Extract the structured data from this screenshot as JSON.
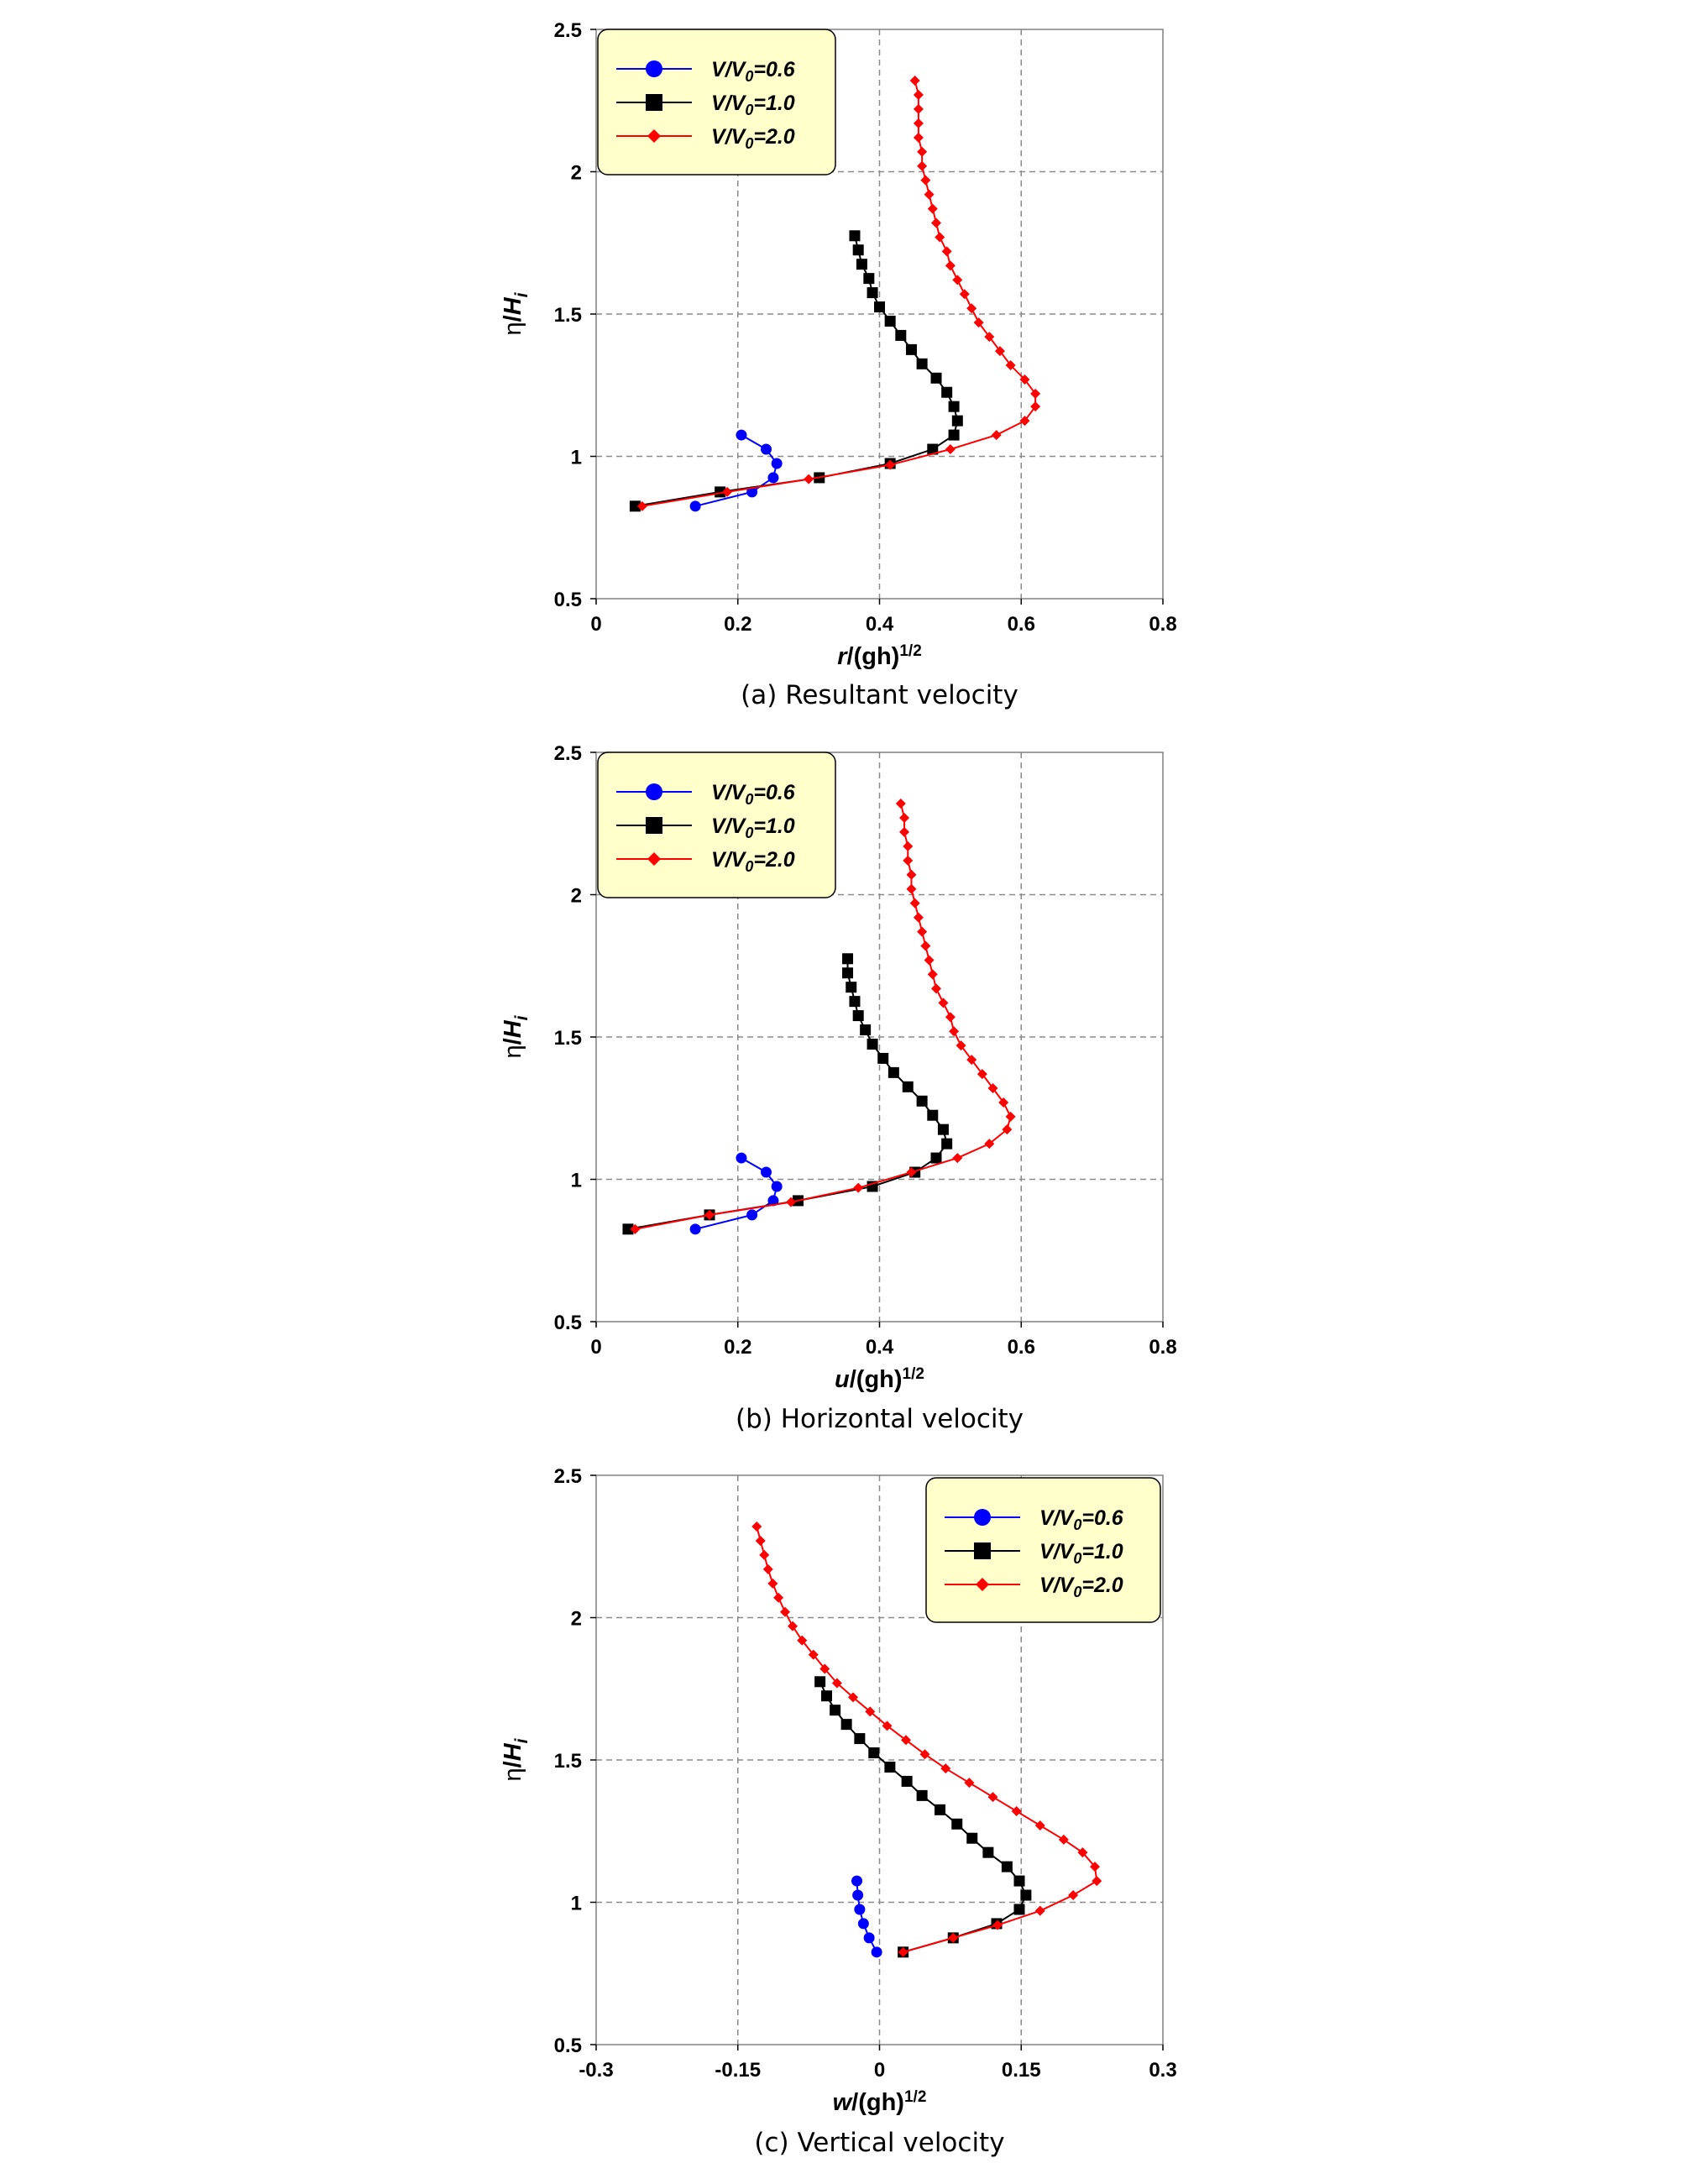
{
  "figure": {
    "captions": [
      "(a) Resultant velocity",
      "(b) Horizontal velocity",
      "(c) Vertical velocity"
    ]
  },
  "chart_data": [
    {
      "type": "line",
      "caption": "(a) Resultant velocity",
      "xlabel": "r/(gh)1/2",
      "xlabel_parts": {
        "var": "r",
        "rest": "/(gh)",
        "sup": "1/2"
      },
      "ylabel": "η/Hi",
      "ylabel_parts": {
        "eta": "η",
        "slash": "/",
        "var": "H",
        "sub": "i"
      },
      "xlim": [
        0,
        0.8
      ],
      "ylim": [
        0.5,
        2.5
      ],
      "xticks": [
        0,
        0.2,
        0.4,
        0.6,
        0.8
      ],
      "xtick_labels": [
        "0",
        "0.2",
        "0.4",
        "0.6",
        "0.8"
      ],
      "yticks": [
        0.5,
        1,
        1.5,
        2,
        2.5
      ],
      "ytick_labels": [
        "0.5",
        "1",
        "1.5",
        "2",
        "2.5"
      ],
      "grid": "dashed",
      "legend_placement": "top-left",
      "series": [
        {
          "name": "V/V0=0.6",
          "label": {
            "a": "V",
            "b": "/",
            "c": "V",
            "sub": "0",
            "d": "=0.6"
          },
          "color": "#0000ff",
          "marker": "circle",
          "points": [
            [
              0.14,
              0.825
            ],
            [
              0.22,
              0.875
            ],
            [
              0.25,
              0.925
            ],
            [
              0.255,
              0.975
            ],
            [
              0.24,
              1.025
            ],
            [
              0.205,
              1.075
            ]
          ]
        },
        {
          "name": "V/V0=1.0",
          "label": {
            "a": "V",
            "b": "/",
            "c": "V",
            "sub": "0",
            "d": "=1.0"
          },
          "color": "#000000",
          "marker": "square",
          "points": [
            [
              0.055,
              0.825
            ],
            [
              0.175,
              0.875
            ],
            [
              0.315,
              0.925
            ],
            [
              0.415,
              0.975
            ],
            [
              0.475,
              1.025
            ],
            [
              0.505,
              1.075
            ],
            [
              0.51,
              1.125
            ],
            [
              0.505,
              1.175
            ],
            [
              0.495,
              1.225
            ],
            [
              0.48,
              1.275
            ],
            [
              0.46,
              1.325
            ],
            [
              0.445,
              1.375
            ],
            [
              0.43,
              1.425
            ],
            [
              0.415,
              1.475
            ],
            [
              0.4,
              1.525
            ],
            [
              0.39,
              1.575
            ],
            [
              0.385,
              1.625
            ],
            [
              0.375,
              1.675
            ],
            [
              0.37,
              1.725
            ],
            [
              0.365,
              1.775
            ]
          ]
        },
        {
          "name": "V/V0=2.0",
          "label": {
            "a": "V",
            "b": "/",
            "c": "V",
            "sub": "0",
            "d": "=2.0"
          },
          "color": "#ff0000",
          "marker": "diamond",
          "points": [
            [
              0.065,
              0.825
            ],
            [
              0.185,
              0.875
            ],
            [
              0.3,
              0.92
            ],
            [
              0.415,
              0.97
            ],
            [
              0.5,
              1.025
            ],
            [
              0.565,
              1.075
            ],
            [
              0.605,
              1.125
            ],
            [
              0.62,
              1.175
            ],
            [
              0.62,
              1.22
            ],
            [
              0.605,
              1.27
            ],
            [
              0.585,
              1.32
            ],
            [
              0.57,
              1.37
            ],
            [
              0.555,
              1.42
            ],
            [
              0.54,
              1.47
            ],
            [
              0.53,
              1.52
            ],
            [
              0.52,
              1.57
            ],
            [
              0.51,
              1.62
            ],
            [
              0.5,
              1.67
            ],
            [
              0.495,
              1.72
            ],
            [
              0.485,
              1.77
            ],
            [
              0.48,
              1.82
            ],
            [
              0.475,
              1.87
            ],
            [
              0.47,
              1.92
            ],
            [
              0.465,
              1.97
            ],
            [
              0.46,
              2.02
            ],
            [
              0.46,
              2.07
            ],
            [
              0.455,
              2.12
            ],
            [
              0.455,
              2.17
            ],
            [
              0.455,
              2.22
            ],
            [
              0.455,
              2.27
            ],
            [
              0.45,
              2.32
            ]
          ]
        }
      ]
    },
    {
      "type": "line",
      "caption": "(b) Horizontal velocity",
      "xlabel": "u/(gh)1/2",
      "xlabel_parts": {
        "var": "u",
        "rest": "/(gh)",
        "sup": "1/2"
      },
      "ylabel": "η/Hi",
      "ylabel_parts": {
        "eta": "η",
        "slash": "/",
        "var": "H",
        "sub": "i"
      },
      "xlim": [
        0,
        0.8
      ],
      "ylim": [
        0.5,
        2.5
      ],
      "xticks": [
        0,
        0.2,
        0.4,
        0.6,
        0.8
      ],
      "xtick_labels": [
        "0",
        "0.2",
        "0.4",
        "0.6",
        "0.8"
      ],
      "yticks": [
        0.5,
        1,
        1.5,
        2,
        2.5
      ],
      "ytick_labels": [
        "0.5",
        "1",
        "1.5",
        "2",
        "2.5"
      ],
      "grid": "dashed",
      "legend_placement": "top-left",
      "series": [
        {
          "name": "V/V0=0.6",
          "label": {
            "a": "V",
            "b": "/",
            "c": "V",
            "sub": "0",
            "d": "=0.6"
          },
          "color": "#0000ff",
          "marker": "circle",
          "points": [
            [
              0.14,
              0.825
            ],
            [
              0.22,
              0.875
            ],
            [
              0.25,
              0.925
            ],
            [
              0.255,
              0.975
            ],
            [
              0.24,
              1.025
            ],
            [
              0.205,
              1.075
            ]
          ]
        },
        {
          "name": "V/V0=1.0",
          "label": {
            "a": "V",
            "b": "/",
            "c": "V",
            "sub": "0",
            "d": "=1.0"
          },
          "color": "#000000",
          "marker": "square",
          "points": [
            [
              0.045,
              0.825
            ],
            [
              0.16,
              0.875
            ],
            [
              0.285,
              0.925
            ],
            [
              0.39,
              0.975
            ],
            [
              0.45,
              1.025
            ],
            [
              0.48,
              1.075
            ],
            [
              0.495,
              1.125
            ],
            [
              0.49,
              1.175
            ],
            [
              0.475,
              1.225
            ],
            [
              0.46,
              1.275
            ],
            [
              0.44,
              1.325
            ],
            [
              0.42,
              1.375
            ],
            [
              0.405,
              1.425
            ],
            [
              0.39,
              1.475
            ],
            [
              0.38,
              1.525
            ],
            [
              0.37,
              1.575
            ],
            [
              0.365,
              1.625
            ],
            [
              0.36,
              1.675
            ],
            [
              0.355,
              1.725
            ],
            [
              0.355,
              1.775
            ]
          ]
        },
        {
          "name": "V/V0=2.0",
          "label": {
            "a": "V",
            "b": "/",
            "c": "V",
            "sub": "0",
            "d": "=2.0"
          },
          "color": "#ff0000",
          "marker": "diamond",
          "points": [
            [
              0.055,
              0.825
            ],
            [
              0.16,
              0.875
            ],
            [
              0.275,
              0.92
            ],
            [
              0.37,
              0.97
            ],
            [
              0.445,
              1.025
            ],
            [
              0.51,
              1.075
            ],
            [
              0.555,
              1.125
            ],
            [
              0.58,
              1.175
            ],
            [
              0.585,
              1.22
            ],
            [
              0.575,
              1.27
            ],
            [
              0.56,
              1.32
            ],
            [
              0.545,
              1.37
            ],
            [
              0.53,
              1.42
            ],
            [
              0.515,
              1.47
            ],
            [
              0.505,
              1.52
            ],
            [
              0.5,
              1.57
            ],
            [
              0.49,
              1.62
            ],
            [
              0.48,
              1.67
            ],
            [
              0.475,
              1.72
            ],
            [
              0.47,
              1.77
            ],
            [
              0.465,
              1.82
            ],
            [
              0.46,
              1.87
            ],
            [
              0.455,
              1.92
            ],
            [
              0.45,
              1.97
            ],
            [
              0.445,
              2.02
            ],
            [
              0.445,
              2.07
            ],
            [
              0.44,
              2.12
            ],
            [
              0.44,
              2.17
            ],
            [
              0.435,
              2.22
            ],
            [
              0.435,
              2.27
            ],
            [
              0.43,
              2.32
            ]
          ]
        }
      ]
    },
    {
      "type": "line",
      "caption": "(c) Vertical velocity",
      "xlabel": "w/(gh)1/2",
      "xlabel_parts": {
        "var": "w",
        "rest": "/(gh)",
        "sup": "1/2"
      },
      "ylabel": "η/Hi",
      "ylabel_parts": {
        "eta": "η",
        "slash": "/",
        "var": "H",
        "sub": "i"
      },
      "xlim": [
        -0.3,
        0.3
      ],
      "ylim": [
        0.5,
        2.5
      ],
      "xticks": [
        -0.3,
        -0.15,
        0,
        0.15,
        0.3
      ],
      "xtick_labels": [
        "-0.3",
        "-0.15",
        "0",
        "0.15",
        "0.3"
      ],
      "yticks": [
        0.5,
        1,
        1.5,
        2,
        2.5
      ],
      "ytick_labels": [
        "0.5",
        "1",
        "1.5",
        "2",
        "2.5"
      ],
      "grid": "dashed",
      "legend_placement": "top-right",
      "series": [
        {
          "name": "V/V0=0.6",
          "label": {
            "a": "V",
            "b": "/",
            "c": "V",
            "sub": "0",
            "d": "=0.6"
          },
          "color": "#0000ff",
          "marker": "circle",
          "points": [
            [
              -0.003,
              0.825
            ],
            [
              -0.011,
              0.875
            ],
            [
              -0.017,
              0.925
            ],
            [
              -0.021,
              0.975
            ],
            [
              -0.023,
              1.025
            ],
            [
              -0.024,
              1.075
            ]
          ]
        },
        {
          "name": "V/V0=1.0",
          "label": {
            "a": "V",
            "b": "/",
            "c": "V",
            "sub": "0",
            "d": "=1.0"
          },
          "color": "#000000",
          "marker": "square",
          "points": [
            [
              0.025,
              0.825
            ],
            [
              0.078,
              0.875
            ],
            [
              0.124,
              0.925
            ],
            [
              0.148,
              0.975
            ],
            [
              0.155,
              1.025
            ],
            [
              0.148,
              1.075
            ],
            [
              0.135,
              1.125
            ],
            [
              0.115,
              1.175
            ],
            [
              0.098,
              1.225
            ],
            [
              0.082,
              1.275
            ],
            [
              0.064,
              1.325
            ],
            [
              0.045,
              1.375
            ],
            [
              0.029,
              1.425
            ],
            [
              0.011,
              1.475
            ],
            [
              -0.006,
              1.525
            ],
            [
              -0.021,
              1.575
            ],
            [
              -0.035,
              1.625
            ],
            [
              -0.047,
              1.675
            ],
            [
              -0.056,
              1.725
            ],
            [
              -0.063,
              1.775
            ]
          ]
        },
        {
          "name": "V/V0=2.0",
          "label": {
            "a": "V",
            "b": "/",
            "c": "V",
            "sub": "0",
            "d": "=2.0"
          },
          "color": "#ff0000",
          "marker": "diamond",
          "points": [
            [
              0.025,
              0.825
            ],
            [
              0.078,
              0.875
            ],
            [
              0.125,
              0.92
            ],
            [
              0.17,
              0.97
            ],
            [
              0.205,
              1.025
            ],
            [
              0.23,
              1.075
            ],
            [
              0.228,
              1.125
            ],
            [
              0.215,
              1.175
            ],
            [
              0.195,
              1.22
            ],
            [
              0.17,
              1.27
            ],
            [
              0.145,
              1.32
            ],
            [
              0.12,
              1.37
            ],
            [
              0.095,
              1.42
            ],
            [
              0.07,
              1.47
            ],
            [
              0.048,
              1.52
            ],
            [
              0.028,
              1.57
            ],
            [
              0.008,
              1.62
            ],
            [
              -0.01,
              1.67
            ],
            [
              -0.028,
              1.72
            ],
            [
              -0.045,
              1.77
            ],
            [
              -0.058,
              1.82
            ],
            [
              -0.07,
              1.87
            ],
            [
              -0.082,
              1.92
            ],
            [
              -0.092,
              1.97
            ],
            [
              -0.1,
              2.02
            ],
            [
              -0.107,
              2.07
            ],
            [
              -0.113,
              2.12
            ],
            [
              -0.118,
              2.17
            ],
            [
              -0.122,
              2.22
            ],
            [
              -0.126,
              2.27
            ],
            [
              -0.13,
              2.32
            ]
          ]
        }
      ]
    }
  ]
}
